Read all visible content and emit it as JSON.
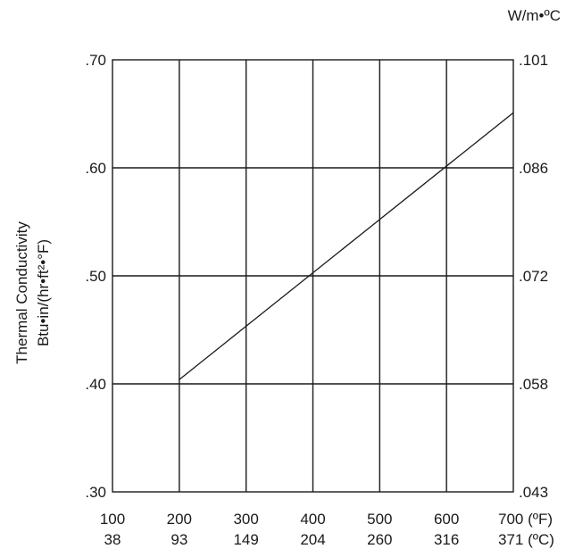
{
  "chart_data": {
    "type": "line",
    "title": "",
    "ylabel_lines": [
      "Thermal Conductivity",
      "Btu•in/(hr•ft²•°F)"
    ],
    "right_unit": "W/m•ºC",
    "xlim": [
      100,
      700
    ],
    "ylim": [
      0.3,
      0.7
    ],
    "grid": true,
    "x_ticks": [
      {
        "value": 100,
        "f": "100",
        "c": "38"
      },
      {
        "value": 200,
        "f": "200",
        "c": "93"
      },
      {
        "value": 300,
        "f": "300",
        "c": "149"
      },
      {
        "value": 400,
        "f": "400",
        "c": "204"
      },
      {
        "value": 500,
        "f": "500",
        "c": "260"
      },
      {
        "value": 600,
        "f": "600",
        "c": "316"
      },
      {
        "value": 700,
        "f": "700 (ºF)",
        "c": "371 (ºC)"
      }
    ],
    "y_ticks": [
      {
        "value": 0.3,
        "left": ".30",
        "right": ".043"
      },
      {
        "value": 0.4,
        "left": ".40",
        "right": ".058"
      },
      {
        "value": 0.5,
        "left": ".50",
        "right": ".072"
      },
      {
        "value": 0.6,
        "left": ".60",
        "right": ".086"
      },
      {
        "value": 0.7,
        "left": ".70",
        "right": ".101"
      }
    ],
    "series": [
      {
        "x": [
          200,
          700
        ],
        "y": [
          0.404,
          0.651
        ]
      }
    ]
  }
}
